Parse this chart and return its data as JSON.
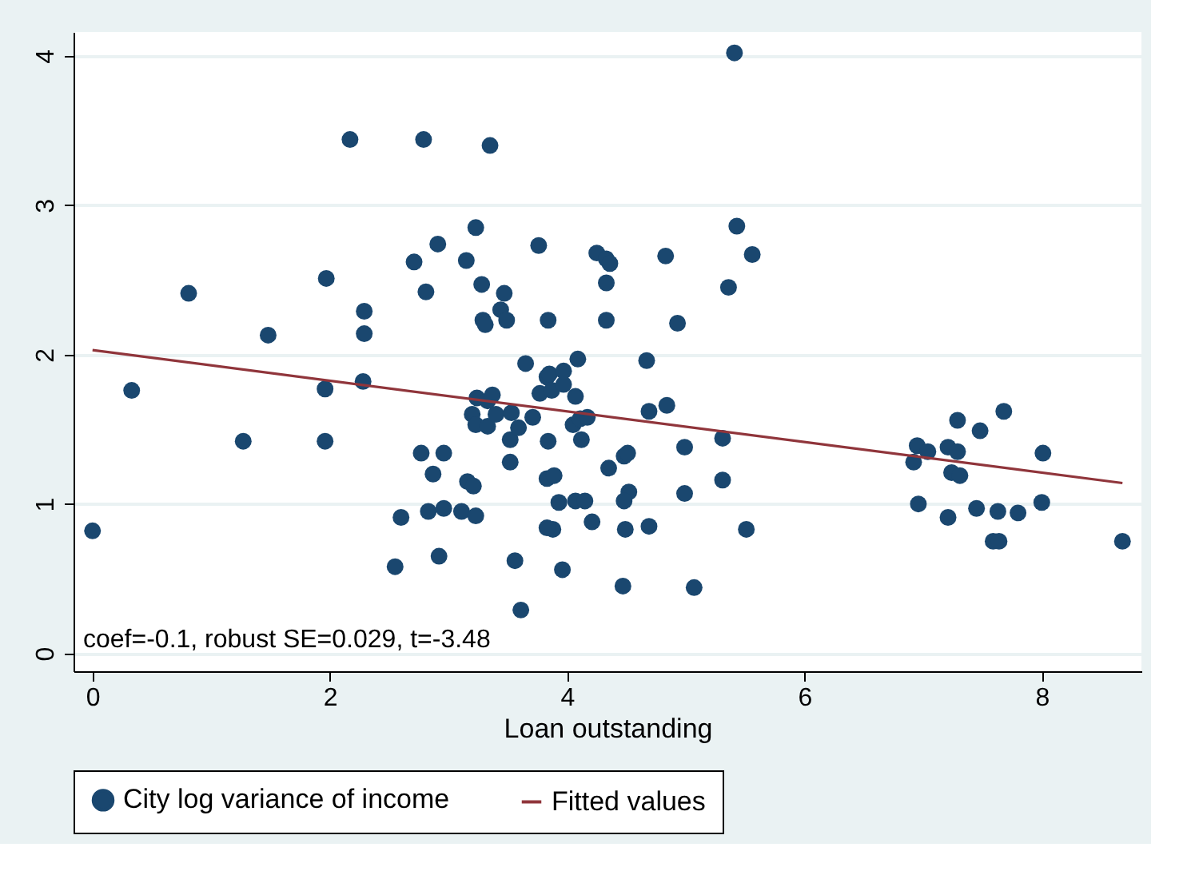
{
  "chart_data": {
    "type": "scatter",
    "xlabel": "Loan outstanding",
    "xlim": [
      -0.16,
      8.84
    ],
    "ylim": [
      -0.12,
      4.16
    ],
    "xticks": [
      0,
      2,
      4,
      6,
      8
    ],
    "yticks": [
      0,
      1,
      2,
      3,
      4
    ],
    "grid": "y",
    "legend": "bottom",
    "annotations": [
      "coef=-0.1, robust SE=0.029, t=-3.48"
    ],
    "series": [
      {
        "name": "City log variance of income",
        "type": "scatter",
        "marker": "circle",
        "color": "#1a476f",
        "x": [
          0,
          0.33,
          0.81,
          1.27,
          1.48,
          1.97,
          1.96,
          1.96,
          2.17,
          2.29,
          2.29,
          2.28,
          2.55,
          2.6,
          2.71,
          2.79,
          2.81,
          2.77,
          2.87,
          2.83,
          2.92,
          2.91,
          2.96,
          2.96,
          3.11,
          3.15,
          3.16,
          3.23,
          3.23,
          3.24,
          3.2,
          3.23,
          3.21,
          3.28,
          3.29,
          3.31,
          3.33,
          3.35,
          3.37,
          3.33,
          3.4,
          3.47,
          3.44,
          3.49,
          3.52,
          3.52,
          3.53,
          3.56,
          3.59,
          3.61,
          3.65,
          3.71,
          3.76,
          3.77,
          3.83,
          3.85,
          3.84,
          3.83,
          3.87,
          3.89,
          3.88,
          3.83,
          3.84,
          3.97,
          3.97,
          3.93,
          4.07,
          3.96,
          4.07,
          4.09,
          4.05,
          4.11,
          4.12,
          4.15,
          4.17,
          4.21,
          4.25,
          4.33,
          4.36,
          4.33,
          4.33,
          4.35,
          4.48,
          4.51,
          4.52,
          4.48,
          4.49,
          4.47,
          4.67,
          4.69,
          4.69,
          4.83,
          4.84,
          4.93,
          4.99,
          4.99,
          5.07,
          5.31,
          5.31,
          5.36,
          5.41,
          5.43,
          5.56,
          5.51,
          6.95,
          6.92,
          7.04,
          6.96,
          7.21,
          7.29,
          7.29,
          7.24,
          7.31,
          7.21,
          7.48,
          7.45,
          7.68,
          7.63,
          7.8,
          7.59,
          7.64,
          8.01,
          8.0,
          8.68
        ],
        "values": [
          0.82,
          1.76,
          2.41,
          1.42,
          2.13,
          2.51,
          1.77,
          1.42,
          3.44,
          2.29,
          2.14,
          1.82,
          0.58,
          0.91,
          2.62,
          3.44,
          2.42,
          1.34,
          1.2,
          0.95,
          0.65,
          2.74,
          0.97,
          1.34,
          0.95,
          2.63,
          1.15,
          2.85,
          0.92,
          1.71,
          1.6,
          1.53,
          1.12,
          2.47,
          2.23,
          2.2,
          1.69,
          3.4,
          1.73,
          1.52,
          1.6,
          2.41,
          2.3,
          2.23,
          1.43,
          1.28,
          1.61,
          0.62,
          1.51,
          0.29,
          1.94,
          1.58,
          2.73,
          1.74,
          1.85,
          1.87,
          2.23,
          1.17,
          1.76,
          1.19,
          0.83,
          0.84,
          1.42,
          1.8,
          1.89,
          1.01,
          1.02,
          0.56,
          1.72,
          1.97,
          1.53,
          1.57,
          1.43,
          1.02,
          1.58,
          0.88,
          2.68,
          2.64,
          2.61,
          2.48,
          2.23,
          1.24,
          1.32,
          1.34,
          1.08,
          1.02,
          0.83,
          0.45,
          1.96,
          1.62,
          0.85,
          2.66,
          1.66,
          2.21,
          1.07,
          1.38,
          0.44,
          1.44,
          1.16,
          2.45,
          4.02,
          2.86,
          2.67,
          0.83,
          1.39,
          1.28,
          1.35,
          1.0,
          1.38,
          1.35,
          1.56,
          1.21,
          1.19,
          0.91,
          1.49,
          0.97,
          1.62,
          0.95,
          0.94,
          0.75,
          0.75,
          1.34,
          1.01,
          0.75
        ]
      },
      {
        "name": "Fitted values",
        "type": "line",
        "line_style": "solid",
        "color": "#90353b",
        "x": [
          0,
          8.68
        ],
        "values": [
          2.03,
          1.14
        ]
      }
    ]
  }
}
